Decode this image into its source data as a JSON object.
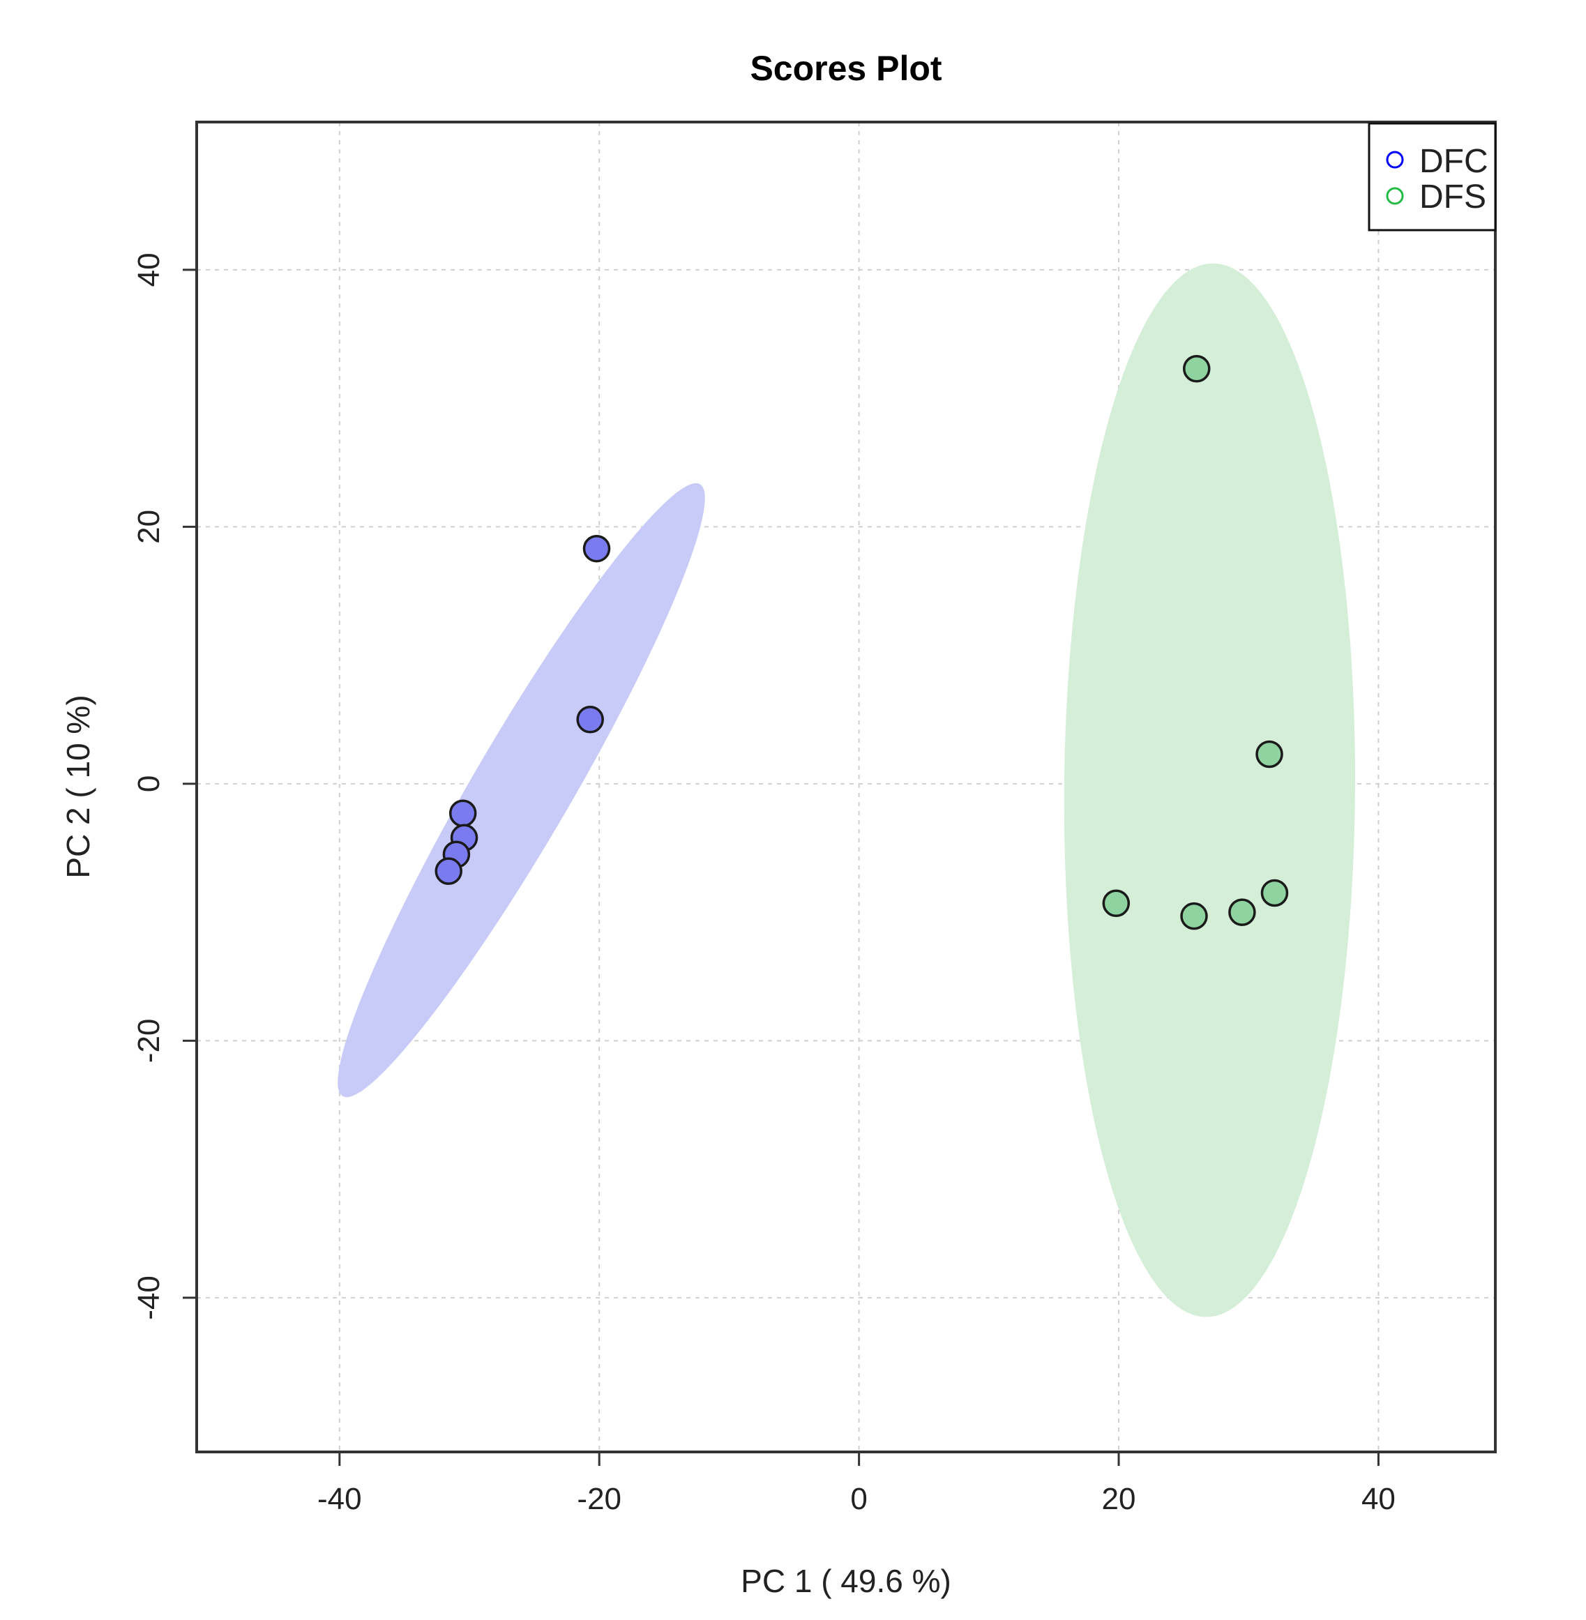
{
  "chart_data": {
    "type": "scatter",
    "title": "Scores Plot",
    "xlabel": "PC 1 ( 49.6 %)",
    "ylabel": "PC 2 ( 10 %)",
    "xlim": [
      -51,
      49
    ],
    "ylim": [
      -52,
      51.5
    ],
    "xticks": [
      -40,
      -20,
      0,
      20,
      40
    ],
    "yticks": [
      -40,
      -20,
      0,
      20,
      40
    ],
    "grid": true,
    "legend_position": "top-right",
    "series": [
      {
        "name": "DFC",
        "color": "#0000FF",
        "fill_color": "#7B7BF0",
        "ellipse_color": "#C8CBF8",
        "points": [
          {
            "x": -20.2,
            "y": 18.3
          },
          {
            "x": -20.7,
            "y": 5.0
          },
          {
            "x": -30.5,
            "y": -2.3
          },
          {
            "x": -30.4,
            "y": -4.2
          },
          {
            "x": -31.0,
            "y": -5.5
          },
          {
            "x": -31.6,
            "y": -6.8
          }
        ],
        "ellipse": {
          "cx": -26.0,
          "cy": -0.5,
          "major_radius": 27.5,
          "minor_radius": 3.8,
          "angle_deg": 60
        }
      },
      {
        "name": "DFS",
        "color": "#22BB44",
        "fill_color": "#8FD4A0",
        "ellipse_color": "#D5EED8",
        "points": [
          {
            "x": 26.0,
            "y": 32.3
          },
          {
            "x": 31.6,
            "y": 2.3
          },
          {
            "x": 19.8,
            "y": -9.3
          },
          {
            "x": 25.8,
            "y": -10.3
          },
          {
            "x": 29.5,
            "y": -10.0
          },
          {
            "x": 32.0,
            "y": -8.5
          }
        ],
        "ellipse": {
          "cx": 27.0,
          "cy": -0.5,
          "major_radius": 41.0,
          "minor_radius": 11.2,
          "angle_deg": 89.6
        }
      }
    ]
  }
}
